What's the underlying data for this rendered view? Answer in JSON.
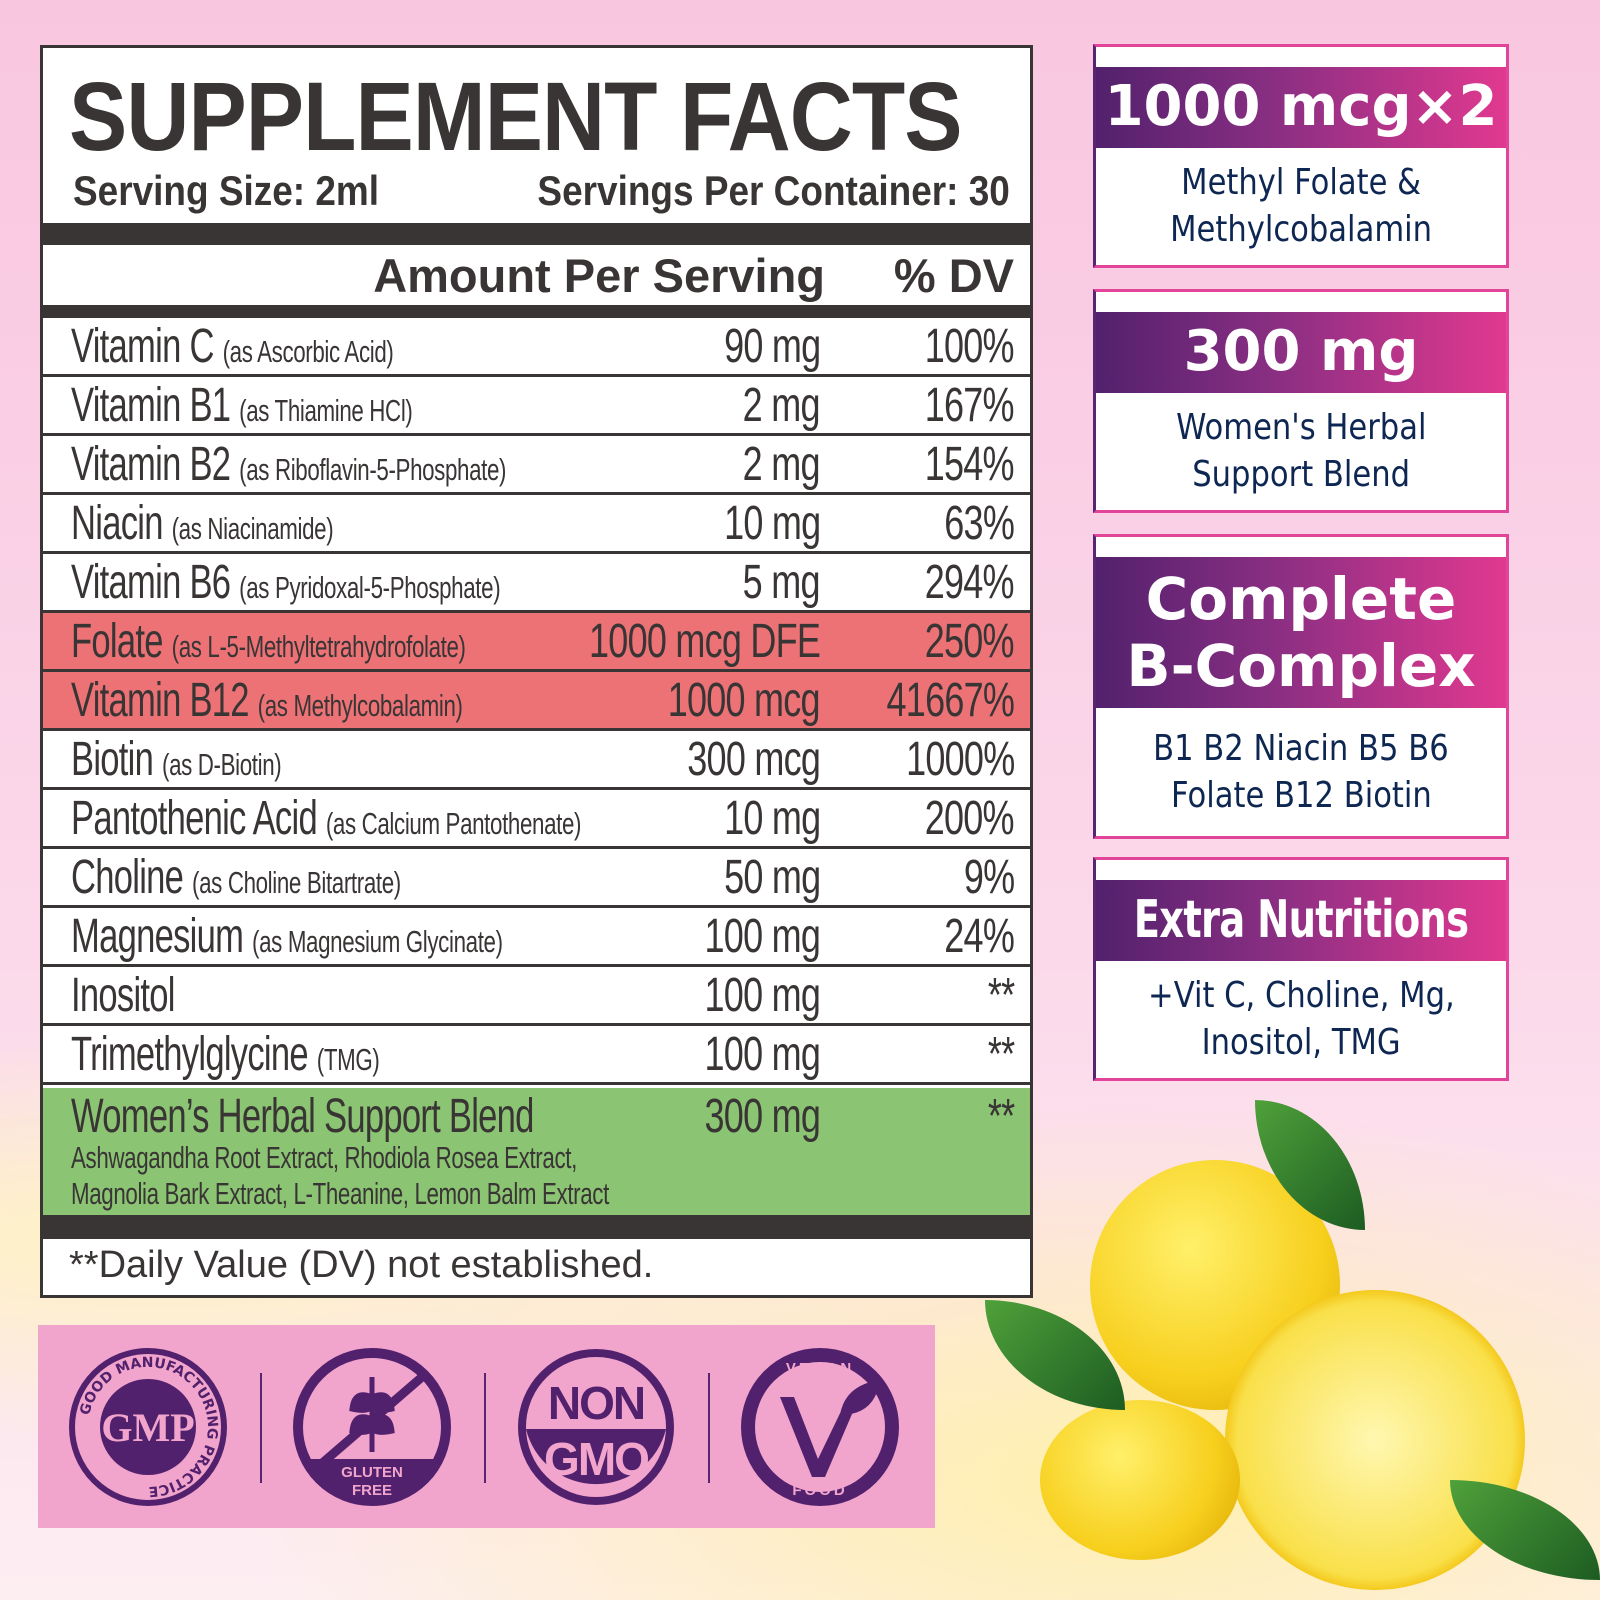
{
  "facts": {
    "title": "SUPPLEMENT FACTS",
    "serving_size": "Serving Size: 2ml",
    "servings_per_container": "Servings Per Container: 30",
    "amount_header": "Amount Per Serving",
    "dv_header": "% DV",
    "rows": [
      {
        "name": "Vitamin C",
        "form": "(as Ascorbic Acid)",
        "amount": "90 mg",
        "dv": "100%"
      },
      {
        "name": "Vitamin B1",
        "form": "(as Thiamine HCl)",
        "amount": "2 mg",
        "dv": "167%"
      },
      {
        "name": "Vitamin B2",
        "form": "(as Riboflavin-5-Phosphate)",
        "amount": "2 mg",
        "dv": "154%"
      },
      {
        "name": "Niacin",
        "form": "(as Niacinamide)",
        "amount": "10 mg",
        "dv": "63%"
      },
      {
        "name": "Vitamin B6",
        "form": "(as Pyridoxal-5-Phosphate)",
        "amount": "5 mg",
        "dv": "294%"
      },
      {
        "name": "Folate",
        "form": "(as L-5-Methyltetrahydrofolate)",
        "amount": "1000 mcg DFE",
        "dv": "250%",
        "highlight": true
      },
      {
        "name": "Vitamin B12",
        "form": "(as Methylcobalamin)",
        "amount": "1000 mcg",
        "dv": "41667%",
        "highlight": true
      },
      {
        "name": "Biotin",
        "form": "(as D-Biotin)",
        "amount": "300 mcg",
        "dv": "1000%"
      },
      {
        "name": "Pantothenic Acid",
        "form": "(as Calcium Pantothenate)",
        "amount": "10 mg",
        "dv": "200%"
      },
      {
        "name": "Choline",
        "form": "(as Choline Bitartrate)",
        "amount": "50 mg",
        "dv": "9%"
      },
      {
        "name": "Magnesium",
        "form": "(as Magnesium Glycinate)",
        "amount": "100 mg",
        "dv": "24%"
      },
      {
        "name": "Inositol",
        "form": "",
        "amount": "100 mg",
        "dv": "**"
      },
      {
        "name": "Trimethylglycine",
        "form": "(TMG)",
        "amount": "100 mg",
        "dv": "**"
      }
    ],
    "blend": {
      "name": "Women’s Herbal Support Blend",
      "amount": "300 mg",
      "dv": "**",
      "line1": "Ashwagandha Root Extract, Rhodiola Rosea Extract,",
      "line2": "Magnolia Bark Extract, L-Theanine, Lemon Balm Extract"
    },
    "footnote": "**Daily Value (DV) not established."
  },
  "cards": [
    {
      "headline": "1000 mcg×2",
      "line1": "Methyl Folate &",
      "line2": "Methylcobalamin"
    },
    {
      "headline": "300 mg",
      "line1": "Women's Herbal",
      "line2": "Support Blend"
    },
    {
      "headline1": "Complete",
      "headline2": "B-Complex",
      "line1": "B1 B2 Niacin B5 B6",
      "line2": "Folate B12 Biotin"
    },
    {
      "headline": "Extra Nutritions",
      "line1": "+Vit C, Choline, Mg,",
      "line2": "Inositol, TMG"
    }
  ],
  "badges": {
    "gmp": {
      "center": "GMP",
      "ring": "GOOD MANUFACTURING PRACTICE"
    },
    "gluten": {
      "line1": "GLUTEN",
      "line2": "FREE"
    },
    "gmo": {
      "line1": "NON",
      "line2": "GMO"
    },
    "vegan": {
      "top": "VEGAN",
      "bottom": "FOOD"
    }
  },
  "colors": {
    "highlight_red": "#ec7276",
    "blend_green": "#8bc473",
    "purple": "#52216d",
    "pink": "#e0398f",
    "navy": "#0e2752",
    "badge_bg": "#f2a5cc"
  }
}
